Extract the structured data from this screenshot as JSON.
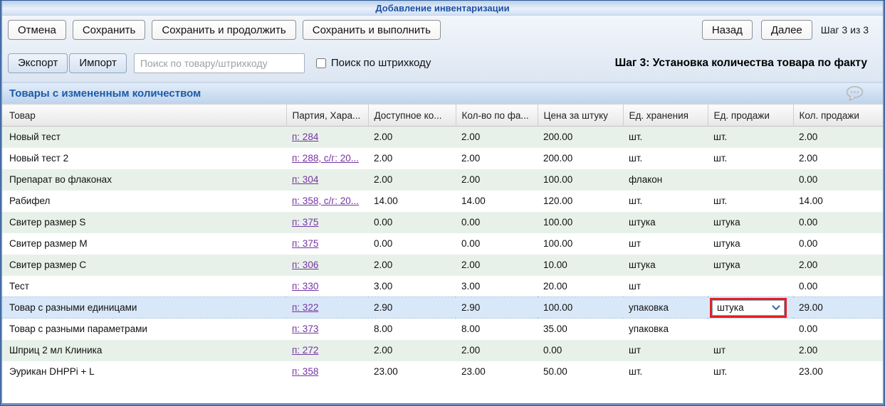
{
  "window": {
    "title": "Добавление инвентаризации"
  },
  "toolbar": {
    "cancel_label": "Отмена",
    "save_label": "Сохранить",
    "save_continue_label": "Сохранить и продолжить",
    "save_execute_label": "Сохранить и выполнить",
    "back_label": "Назад",
    "next_label": "Далее",
    "step_indicator": "Шаг 3 из 3"
  },
  "subtoolbar": {
    "export_label": "Экспорт",
    "import_label": "Импорт",
    "search_placeholder": "Поиск по товару/штрихкоду",
    "search_value": "",
    "barcode_checkbox_label": "Поиск по штрихкоду",
    "barcode_checkbox_checked": false,
    "step_title": "Шаг 3: Установка количества товара по факту"
  },
  "section": {
    "title": "Товары с измененным количеством",
    "comment_icon": "speech-bubble-icon"
  },
  "table": {
    "columns": [
      "Товар",
      "Партия, Хара...",
      "Доступное ко...",
      "Кол-во по фа...",
      "Цена за штуку",
      "Ед. хранения",
      "Ед. продажи",
      "Кол. продажи"
    ],
    "selected_row_index": 8,
    "rows": [
      {
        "product": "Новый тест",
        "batch": "п: 284",
        "available": "2.00",
        "actual": "2.00",
        "price": "200.00",
        "storage_unit": "шт.",
        "sale_unit": "шт.",
        "sale_qty": "2.00"
      },
      {
        "product": "Новый тест 2",
        "batch": "п: 288, с/г: 20...",
        "available": "2.00",
        "actual": "2.00",
        "price": "200.00",
        "storage_unit": "шт.",
        "sale_unit": "шт.",
        "sale_qty": "2.00"
      },
      {
        "product": "Препарат во флаконах",
        "batch": "п: 304",
        "available": "2.00",
        "actual": "2.00",
        "price": "100.00",
        "storage_unit": "флакон",
        "sale_unit": "",
        "sale_qty": "0.00"
      },
      {
        "product": "Рабифел",
        "batch": "п: 358, с/г: 20...",
        "available": "14.00",
        "actual": "14.00",
        "price": "120.00",
        "storage_unit": "шт.",
        "sale_unit": "шт.",
        "sale_qty": "14.00"
      },
      {
        "product": "Свитер размер S",
        "batch": "п: 375",
        "available": "0.00",
        "actual": "0.00",
        "price": "100.00",
        "storage_unit": "штука",
        "sale_unit": "штука",
        "sale_qty": "0.00"
      },
      {
        "product": "Свитер размер M",
        "batch": "п: 375",
        "available": "0.00",
        "actual": "0.00",
        "price": "100.00",
        "storage_unit": "шт",
        "sale_unit": "штука",
        "sale_qty": "0.00"
      },
      {
        "product": "Свитер размер C",
        "batch": "п: 306",
        "available": "2.00",
        "actual": "2.00",
        "price": "10.00",
        "storage_unit": "штука",
        "sale_unit": "штука",
        "sale_qty": "2.00"
      },
      {
        "product": "Тест",
        "batch": "п: 330",
        "available": "3.00",
        "actual": "3.00",
        "price": "20.00",
        "storage_unit": "шт",
        "sale_unit": "",
        "sale_qty": "0.00"
      },
      {
        "product": "Товар с разными единицами",
        "batch": "п: 322",
        "available": "2.90",
        "actual": "2.90",
        "price": "100.00",
        "storage_unit": "упаковка",
        "sale_unit": "штука",
        "sale_unit_is_dropdown": true,
        "sale_qty": "29.00"
      },
      {
        "product": "Товар с разными параметрами",
        "batch": "п: 373",
        "available": "8.00",
        "actual": "8.00",
        "price": "35.00",
        "storage_unit": "упаковка",
        "sale_unit": "",
        "sale_qty": "0.00"
      },
      {
        "product": "Шприц 2 мл Клиника",
        "batch": "п: 272",
        "available": "2.00",
        "actual": "2.00",
        "price": "0.00",
        "storage_unit": "шт",
        "sale_unit": "шт",
        "sale_qty": "2.00"
      },
      {
        "product": "Эурикан DHPPi + L",
        "batch": "п: 358",
        "available": "23.00",
        "actual": "23.00",
        "price": "50.00",
        "storage_unit": "шт.",
        "sale_unit": "шт.",
        "sale_qty": "23.00"
      }
    ]
  },
  "colors": {
    "frame_border": "#2f5894",
    "title_text": "#1c4fa1",
    "section_title_text": "#1b5ba8",
    "link": "#7633a2",
    "row_alt_bg": "#e8f1e9",
    "selected_row_bg": "#d9e8f8",
    "dropdown_highlight": "#e3201f",
    "chevron": "#3d6fb2"
  }
}
